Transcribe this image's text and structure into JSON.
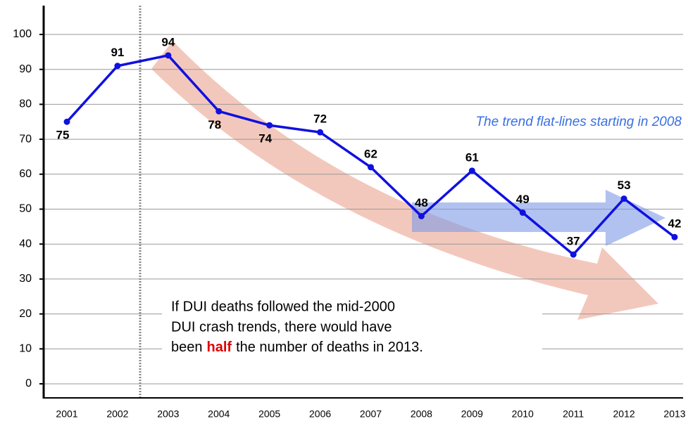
{
  "chart_data": {
    "type": "line",
    "categories": [
      "2001",
      "2002",
      "2003",
      "2004",
      "2005",
      "2006",
      "2007",
      "2008",
      "2009",
      "2010",
      "2011",
      "2012",
      "2013"
    ],
    "series": [
      {
        "color": "#1010e0",
        "values": [
          75,
          91,
          94,
          78,
          74,
          72,
          62,
          48,
          61,
          49,
          37,
          53,
          42
        ]
      }
    ],
    "ylim": [
      0,
      100
    ],
    "yticks": [
      0,
      10,
      20,
      30,
      40,
      50,
      60,
      70,
      80,
      90,
      100
    ],
    "grid": true,
    "annotations": [
      "The trend flat-lines starting in 2008"
    ],
    "note": {
      "lines": [
        "If DUI deaths followed the mid-2000",
        "DUI crash trends, there would have"
      ],
      "last_line": [
        "been",
        "half",
        "the number of deaths in 2013."
      ]
    }
  }
}
